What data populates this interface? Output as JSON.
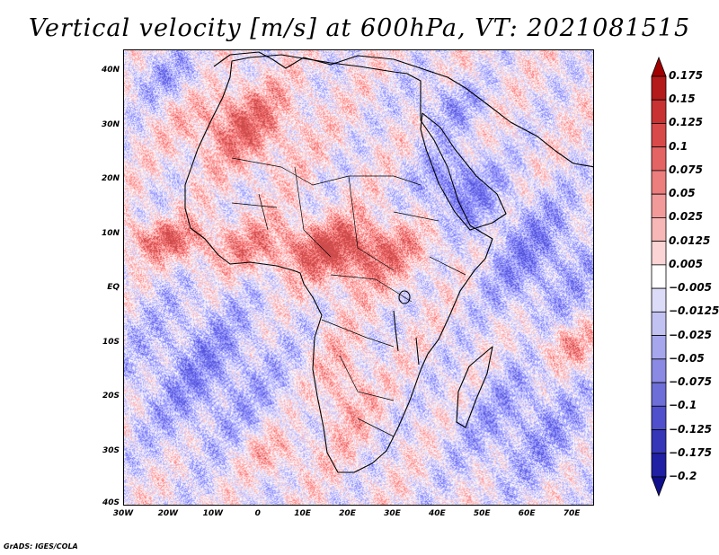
{
  "title": "Vertical velocity [m/s] at 600hPa, VT: 2021081515",
  "credit": "GrADS: IGES/COLA",
  "map": {
    "variable": "vertical velocity",
    "units": "m/s",
    "level_hpa": 600,
    "valid_time": "2021081515",
    "lon_range": [
      -30,
      75
    ],
    "lat_range": [
      -40,
      45
    ],
    "lat_labels": [
      "40N",
      "30N",
      "20N",
      "10N",
      "EQ",
      "10S",
      "20S",
      "30S",
      "40S"
    ],
    "lon_labels": [
      "30W",
      "20W",
      "10W",
      "0",
      "10E",
      "20E",
      "30E",
      "40E",
      "50E",
      "60E",
      "70E"
    ],
    "colors": {
      "land_outline": "#000000",
      "frame": "#000000"
    }
  },
  "colorbar": {
    "labels": [
      "0.175",
      "0.15",
      "0.125",
      "0.1",
      "0.075",
      "0.05",
      "0.025",
      "0.0125",
      "0.005",
      "−0.005",
      "−0.0125",
      "−0.025",
      "−0.05",
      "−0.075",
      "−0.1",
      "−0.125",
      "−0.175",
      "−0.2"
    ],
    "colors": [
      "#a00000",
      "#b41a1a",
      "#c83232",
      "#d84a4a",
      "#e46464",
      "#ec7e7e",
      "#f29a9a",
      "#f7b7b7",
      "#fbd5d5",
      "#ffffff",
      "#dcdcf8",
      "#c2c2f2",
      "#a6a6ec",
      "#8a8ae4",
      "#6e6ed8",
      "#5050cc",
      "#3636b8",
      "#2020a4",
      "#10108c"
    ]
  }
}
